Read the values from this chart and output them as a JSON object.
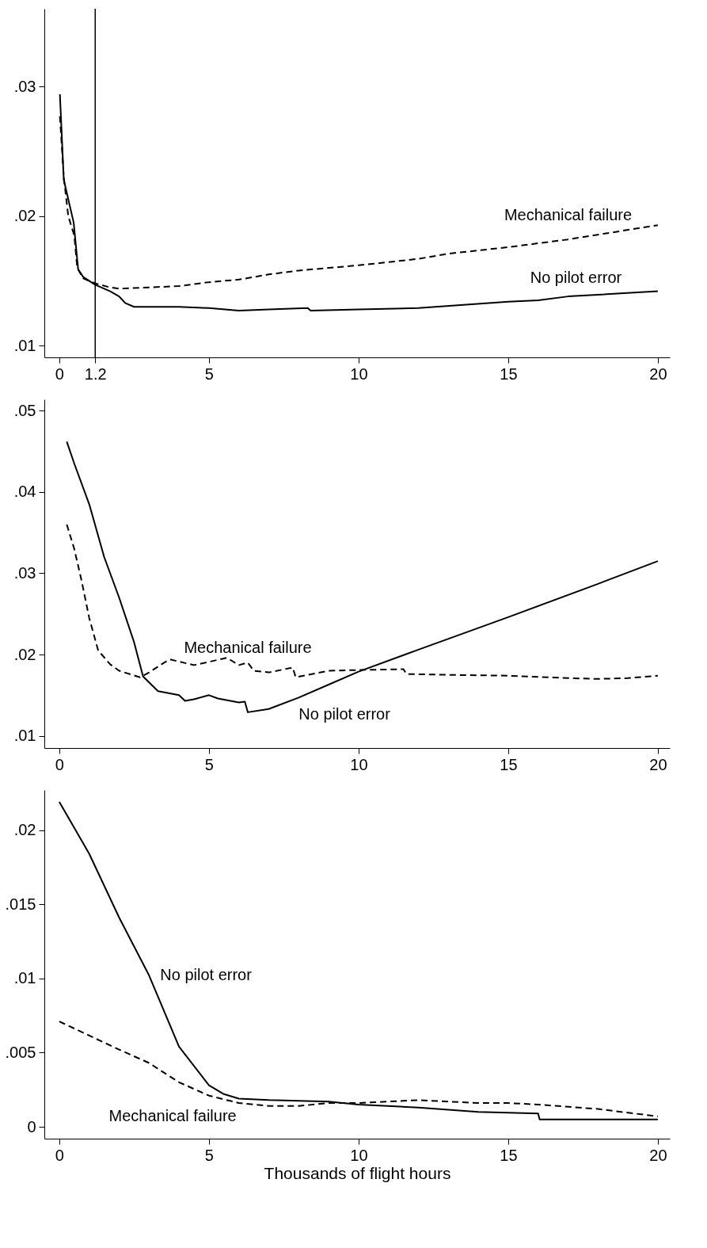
{
  "chart_data": [
    {
      "type": "line",
      "xlim": [
        -0.5,
        20.4
      ],
      "ylim": [
        0.0091,
        0.036
      ],
      "xticks": [
        0,
        1.2,
        5,
        10,
        15,
        20
      ],
      "yticks": [
        {
          "value": 0.01,
          "label": ".01"
        },
        {
          "value": 0.02,
          "label": ".02"
        },
        {
          "value": 0.03,
          "label": ".03"
        }
      ],
      "grid": false,
      "ref_lines": [
        {
          "axis": "x",
          "value": 1.2,
          "color": "#000000"
        }
      ],
      "series": [
        {
          "name": "Mechanical failure",
          "color": "#000000",
          "line_style": "dashed",
          "x": [
            0.02,
            0.15,
            0.3,
            0.5,
            0.6,
            0.8,
            1.2,
            1.7,
            2,
            3,
            4,
            5,
            6,
            7,
            8,
            10,
            12,
            13,
            15,
            17,
            20
          ],
          "values": [
            0.0277,
            0.023,
            0.02,
            0.0185,
            0.016,
            0.0152,
            0.0148,
            0.0145,
            0.0144,
            0.0145,
            0.0146,
            0.0149,
            0.0151,
            0.0155,
            0.0158,
            0.0162,
            0.0167,
            0.0171,
            0.0176,
            0.0182,
            0.0193
          ]
        },
        {
          "name": "No pilot error",
          "color": "#000000",
          "line_style": "solid",
          "x": [
            0.02,
            0.15,
            0.48,
            0.63,
            0.8,
            1.2,
            1.7,
            2,
            2.2,
            2.5,
            3,
            4,
            5,
            6,
            7,
            8.3,
            8.4,
            10,
            12,
            15,
            16,
            17,
            20
          ],
          "values": [
            0.0294,
            0.0228,
            0.0195,
            0.0159,
            0.0153,
            0.0147,
            0.0142,
            0.0138,
            0.0133,
            0.013,
            0.013,
            0.013,
            0.0129,
            0.0127,
            0.0128,
            0.0129,
            0.0127,
            0.0128,
            0.0129,
            0.0134,
            0.0135,
            0.0138,
            0.0142
          ]
        }
      ]
    },
    {
      "type": "line",
      "xlim": [
        -0.5,
        20.4
      ],
      "ylim": [
        0.0085,
        0.0514
      ],
      "xticks": [
        0,
        5,
        10,
        15,
        20
      ],
      "yticks": [
        {
          "value": 0.01,
          "label": ".01"
        },
        {
          "value": 0.02,
          "label": ".02"
        },
        {
          "value": 0.03,
          "label": ".03"
        },
        {
          "value": 0.04,
          "label": ".04"
        },
        {
          "value": 0.05,
          "label": ".05"
        }
      ],
      "grid": false,
      "series": [
        {
          "name": "Mechanical failure",
          "color": "#000000",
          "line_style": "dashed",
          "x": [
            0.25,
            0.5,
            0.75,
            1,
            1.3,
            1.7,
            2,
            2.7,
            3,
            3.5,
            3.7,
            4.5,
            5,
            5.6,
            6,
            6.3,
            6.5,
            7,
            7.8,
            7.9,
            9,
            10,
            11.5,
            11.6,
            13,
            15,
            17,
            18,
            19,
            20
          ],
          "values": [
            0.036,
            0.033,
            0.029,
            0.0245,
            0.0205,
            0.0188,
            0.018,
            0.0172,
            0.0178,
            0.019,
            0.0194,
            0.0187,
            0.0191,
            0.0196,
            0.0187,
            0.019,
            0.018,
            0.0178,
            0.0184,
            0.0172,
            0.018,
            0.0181,
            0.0182,
            0.0176,
            0.0175,
            0.0174,
            0.0171,
            0.017,
            0.0171,
            0.0174
          ]
        },
        {
          "name": "No pilot error",
          "color": "#000000",
          "line_style": "solid",
          "x": [
            0.25,
            0.5,
            1,
            1.5,
            2,
            2.5,
            2.8,
            3.3,
            4,
            4.2,
            4.5,
            5,
            5.3,
            6,
            6.2,
            6.3,
            7,
            8,
            9,
            10,
            12,
            15,
            18,
            20
          ],
          "values": [
            0.0462,
            0.0435,
            0.0385,
            0.032,
            0.027,
            0.0215,
            0.0173,
            0.0155,
            0.015,
            0.0143,
            0.0145,
            0.015,
            0.0146,
            0.0141,
            0.0142,
            0.0129,
            0.0133,
            0.0147,
            0.0163,
            0.0179,
            0.0206,
            0.0246,
            0.0287,
            0.0315
          ]
        }
      ]
    },
    {
      "type": "line",
      "xlim": [
        -0.5,
        20.4
      ],
      "ylim": [
        -0.0008,
        0.0227
      ],
      "xticks": [
        0,
        5,
        10,
        15,
        20
      ],
      "yticks": [
        0,
        {
          "value": 0.005,
          "label": ".005"
        },
        {
          "value": 0.01,
          "label": ".01"
        },
        {
          "value": 0.015,
          "label": ".015"
        },
        {
          "value": 0.02,
          "label": ".02"
        }
      ],
      "grid": false,
      "xlabel": "Thousands of flight hours",
      "series": [
        {
          "name": "No pilot error",
          "color": "#000000",
          "line_style": "solid",
          "x": [
            0,
            1,
            2,
            3,
            4,
            5,
            5.5,
            6,
            7,
            9,
            10,
            12,
            14,
            16,
            16.05,
            20
          ],
          "values": [
            0.0219,
            0.0184,
            0.0141,
            0.0102,
            0.0054,
            0.0028,
            0.0022,
            0.0019,
            0.0018,
            0.0017,
            0.0015,
            0.0013,
            0.001,
            0.0009,
            0.0005,
            0.0005
          ]
        },
        {
          "name": "Mechanical failure",
          "color": "#000000",
          "line_style": "dashed",
          "x": [
            0,
            2,
            3,
            4,
            5,
            6,
            7,
            8,
            9,
            10,
            12,
            14,
            15,
            16,
            18,
            20
          ],
          "values": [
            0.0071,
            0.0052,
            0.0043,
            0.003,
            0.0021,
            0.0016,
            0.0014,
            0.0014,
            0.0016,
            0.0016,
            0.0018,
            0.0016,
            0.0016,
            0.0015,
            0.0012,
            0.0007
          ]
        }
      ]
    }
  ]
}
